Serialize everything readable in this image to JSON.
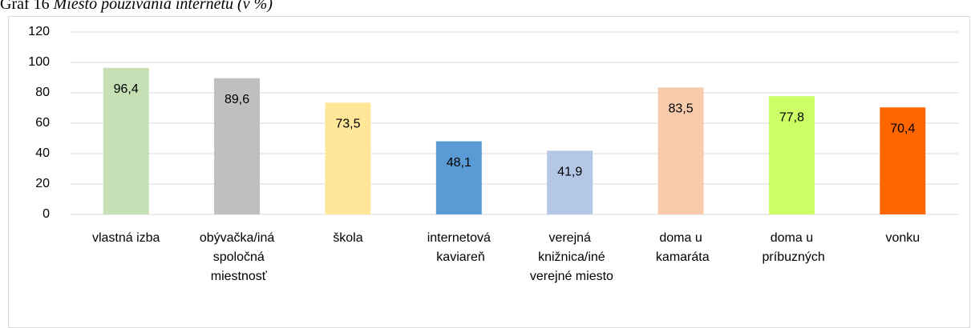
{
  "chart_data": {
    "type": "bar",
    "label": "Graf 16",
    "title": "Miesto používania internetu (v %)",
    "categories": [
      "vlastná izba",
      "obývačka/iná spoločná miestnosť",
      "škola",
      "internetová kaviareň",
      "verejná knižnica/iné verejné miesto",
      "doma u kamaráta",
      "doma u príbuzných",
      "vonku"
    ],
    "values": [
      96.4,
      89.6,
      73.5,
      48.1,
      41.9,
      83.5,
      77.8,
      70.4
    ],
    "value_labels": [
      "96,4",
      "89,6",
      "73,5",
      "48,1",
      "41,9",
      "83,5",
      "77,8",
      "70,4"
    ],
    "colors": [
      "#c5e0b4",
      "#bfbfbf",
      "#ffe699",
      "#5b9bd5",
      "#b4c7e7",
      "#f8cbad",
      "#ccff66",
      "#ff6600"
    ],
    "ylim": [
      0,
      120
    ],
    "yticks": [
      0,
      20,
      40,
      60,
      80,
      100,
      120
    ],
    "grid": true
  }
}
